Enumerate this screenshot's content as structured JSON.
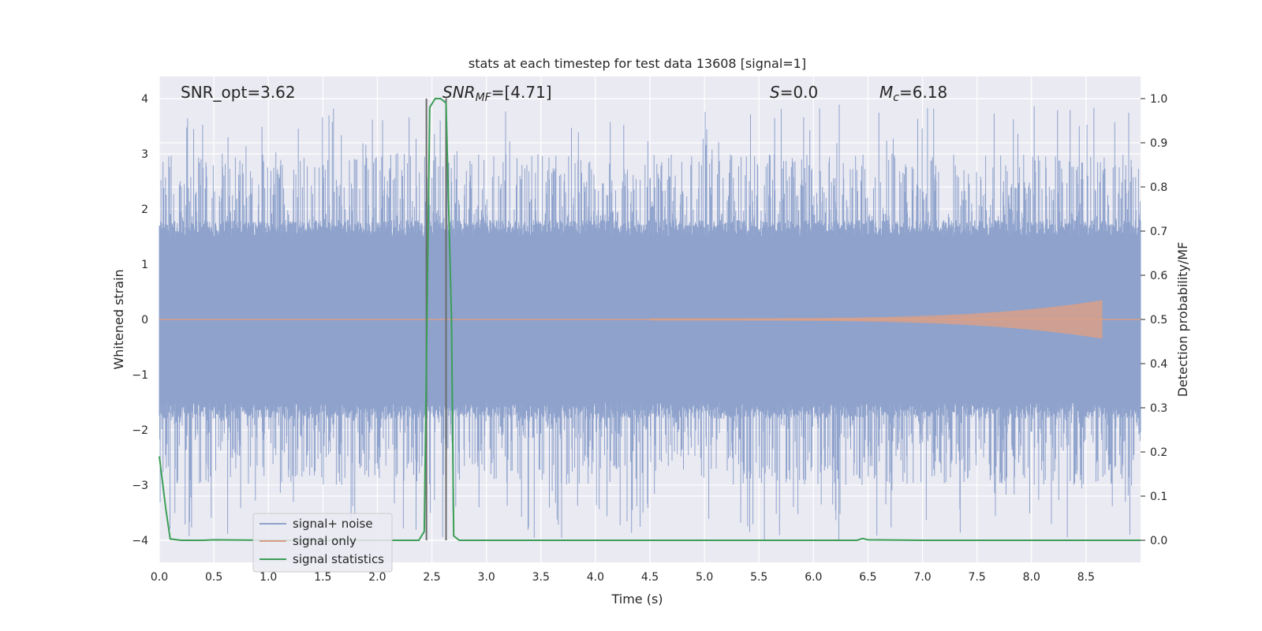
{
  "chart_data": {
    "type": "line",
    "title": "stats at each timestep for test data 13608 [signal=1]",
    "xlabel": "Time (s)",
    "ylabel": "Whitened strain",
    "y2label": "Detection probability/MF",
    "xlim": [
      0.0,
      9.0
    ],
    "ylim": [
      -4.4,
      4.4
    ],
    "y2lim": [
      -0.05,
      1.05
    ],
    "x_ticks": [
      "0.0",
      "0.5",
      "1.0",
      "1.5",
      "2.0",
      "2.5",
      "3.0",
      "3.5",
      "4.0",
      "4.5",
      "5.0",
      "5.5",
      "6.0",
      "6.5",
      "7.0",
      "7.5",
      "8.0",
      "8.5"
    ],
    "y_ticks": [
      "4",
      "3",
      "2",
      "1",
      "0",
      "−1",
      "−2",
      "−3",
      "−4"
    ],
    "y2_ticks": [
      "1.0",
      "0.9",
      "0.8",
      "0.7",
      "0.6",
      "0.5",
      "0.4",
      "0.3",
      "0.2",
      "0.1",
      "0.0"
    ],
    "grid": true,
    "legend_position": "lower-left",
    "annotations": {
      "snr_opt": "SNR_opt=3.62",
      "snr_mf_main": "SNR",
      "snr_mf_sub": "MF",
      "snr_mf_value": "=[4.71]",
      "s_symbol": "S",
      "s_value": "=0.0",
      "mc_main": "M",
      "mc_sub": "c",
      "mc_value": "=6.18"
    },
    "series": [
      {
        "name": "signal+ noise",
        "color": "#8ea2cc",
        "description_values": {
          "typical_envelope": [
            -1.6,
            1.6
          ],
          "peak_max": 3.9,
          "peak_min": -4.0
        }
      },
      {
        "name": "signal only",
        "color": "#d8a088",
        "chirp": {
          "start_time": 4.5,
          "end_time": 8.65,
          "peak_amplitude": 0.35
        }
      },
      {
        "name": "signal statistics",
        "color": "#3c9e57",
        "axis": "right",
        "x": [
          0.0,
          0.06,
          0.1,
          0.2,
          0.4,
          0.5,
          1.0,
          2.0,
          2.38,
          2.43,
          2.48,
          2.53,
          2.58,
          2.63,
          2.68,
          2.7,
          2.75,
          3.0,
          4.0,
          5.0,
          6.0,
          6.4,
          6.45,
          6.5,
          7.0,
          8.0,
          9.0
        ],
        "values": [
          0.19,
          0.07,
          0.003,
          0.0,
          0.0,
          0.001,
          0.0,
          0.0,
          0.0,
          0.02,
          0.98,
          1.0,
          1.0,
          0.99,
          0.5,
          0.01,
          0.0,
          0.0,
          0.0,
          0.0,
          0.0,
          0.0,
          0.004,
          0.001,
          0.0,
          0.0,
          0.0
        ]
      }
    ],
    "vertical_markers": [
      2.45,
      2.63
    ],
    "colors": {
      "background": "#eaeaf2",
      "grid": "#ffffff",
      "marker": "#6b6b6b"
    }
  }
}
